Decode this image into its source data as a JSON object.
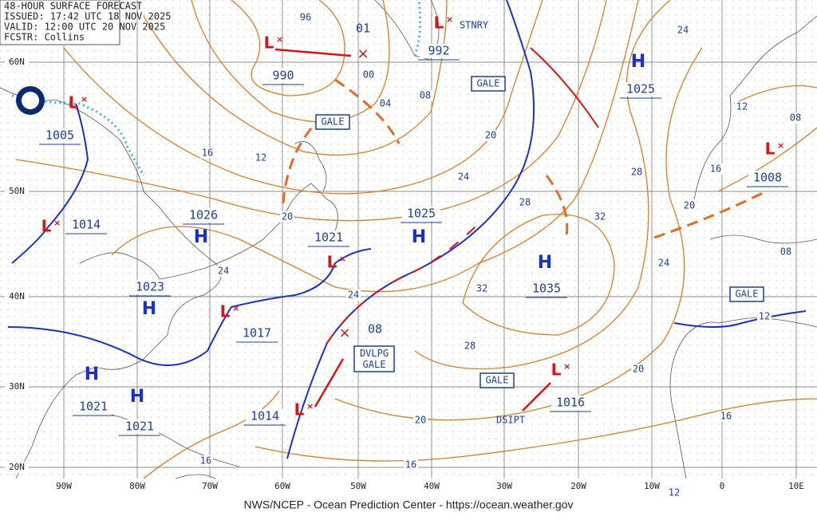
{
  "header": [
    "48-HOUR SURFACE FORECAST",
    "ISSUED: 17:42 UTC 18 NOV 2025",
    "VALID: 12:00 UTC 20 NOV 2025",
    "FCSTR: Collins"
  ],
  "footer": "NWS/NCEP - Ocean Prediction Center - https://ocean.weather.gov",
  "lat_labels": [
    "60N",
    "50N",
    "40N",
    "30N",
    "20N"
  ],
  "lon_labels": [
    "90W",
    "80W",
    "70W",
    "60W",
    "50W",
    "40W",
    "30W",
    "20W",
    "10W",
    "0",
    "10E"
  ],
  "centers": [
    {
      "letter": "L",
      "pressure": "1005"
    },
    {
      "letter": "L",
      "pressure": "1014"
    },
    {
      "letter": "H",
      "pressure": "1026"
    },
    {
      "letter": "H",
      "pressure": "1023"
    },
    {
      "letter": "H",
      "pressure": "1021"
    },
    {
      "letter": "H",
      "pressure": "1021"
    },
    {
      "letter": "L",
      "pressure": "1021"
    },
    {
      "letter": "L",
      "pressure": "990"
    },
    {
      "letter": "L",
      "pressure": "992"
    },
    {
      "letter": "L",
      "pressure": "1017"
    },
    {
      "letter": "L",
      "pressure": "1014"
    },
    {
      "letter": "H",
      "pressure": "1025"
    },
    {
      "letter": "H",
      "pressure": "1035"
    },
    {
      "letter": "H",
      "pressure": "1025"
    },
    {
      "letter": "L",
      "pressure": "1008"
    },
    {
      "letter": "L",
      "pressure": "1016"
    }
  ],
  "forecast_positions": [
    "01",
    "08"
  ],
  "isobar_labels": [
    "96",
    "00",
    "04",
    "08",
    "12",
    "16",
    "20",
    "24",
    "24",
    "24",
    "20",
    "28",
    "32",
    "32",
    "28",
    "20",
    "16",
    "16",
    "24",
    "28",
    "24",
    "20",
    "16",
    "12",
    "12",
    "08",
    "16",
    "20",
    "08",
    "12"
  ],
  "boxed_annotations": [
    "GALE",
    "GALE",
    "GALE",
    "GALE",
    "DVLPG GALE"
  ],
  "annotations": [
    "STNRY",
    "DSIPT"
  ]
}
